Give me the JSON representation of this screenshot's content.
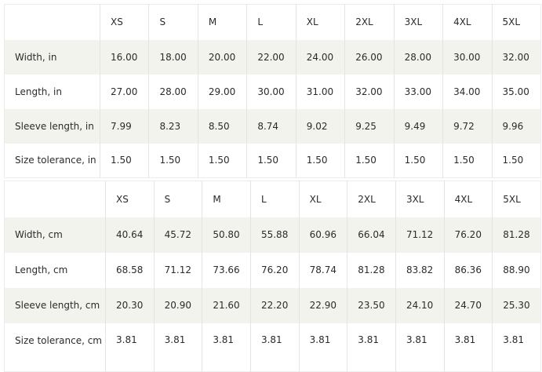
{
  "inches": {
    "sizes": [
      "XS",
      "S",
      "M",
      "L",
      "XL",
      "2XL",
      "3XL",
      "4XL",
      "5XL"
    ],
    "rows": [
      {
        "label": "Width, in",
        "values": [
          "16.00",
          "18.00",
          "20.00",
          "22.00",
          "24.00",
          "26.00",
          "28.00",
          "30.00",
          "32.00"
        ]
      },
      {
        "label": "Length, in",
        "values": [
          "27.00",
          "28.00",
          "29.00",
          "30.00",
          "31.00",
          "32.00",
          "33.00",
          "34.00",
          "35.00"
        ]
      },
      {
        "label": "Sleeve length, in",
        "values": [
          "7.99",
          "8.23",
          "8.50",
          "8.74",
          "9.02",
          "9.25",
          "9.49",
          "9.72",
          "9.96"
        ]
      },
      {
        "label": "Size tolerance, in",
        "values": [
          "1.50",
          "1.50",
          "1.50",
          "1.50",
          "1.50",
          "1.50",
          "1.50",
          "1.50",
          "1.50"
        ]
      }
    ]
  },
  "centimeters": {
    "sizes": [
      "XS",
      "S",
      "M",
      "L",
      "XL",
      "2XL",
      "3XL",
      "4XL",
      "5XL"
    ],
    "rows": [
      {
        "label": "Width, cm",
        "values": [
          "40.64",
          "45.72",
          "50.80",
          "55.88",
          "60.96",
          "66.04",
          "71.12",
          "76.20",
          "81.28"
        ]
      },
      {
        "label": "Length, cm",
        "values": [
          "68.58",
          "71.12",
          "73.66",
          "76.20",
          "78.74",
          "81.28",
          "83.82",
          "86.36",
          "88.90"
        ]
      },
      {
        "label": "Sleeve length, cm",
        "values": [
          "20.30",
          "20.90",
          "21.60",
          "22.20",
          "22.90",
          "23.50",
          "24.10",
          "24.70",
          "25.30"
        ]
      },
      {
        "label": "Size tolerance, cm",
        "values": [
          "3.81",
          "3.81",
          "3.81",
          "3.81",
          "3.81",
          "3.81",
          "3.81",
          "3.81",
          "3.81"
        ]
      }
    ]
  },
  "colors": {
    "shaded_row": "#f3f3ee",
    "text": "#2b2b2b"
  }
}
